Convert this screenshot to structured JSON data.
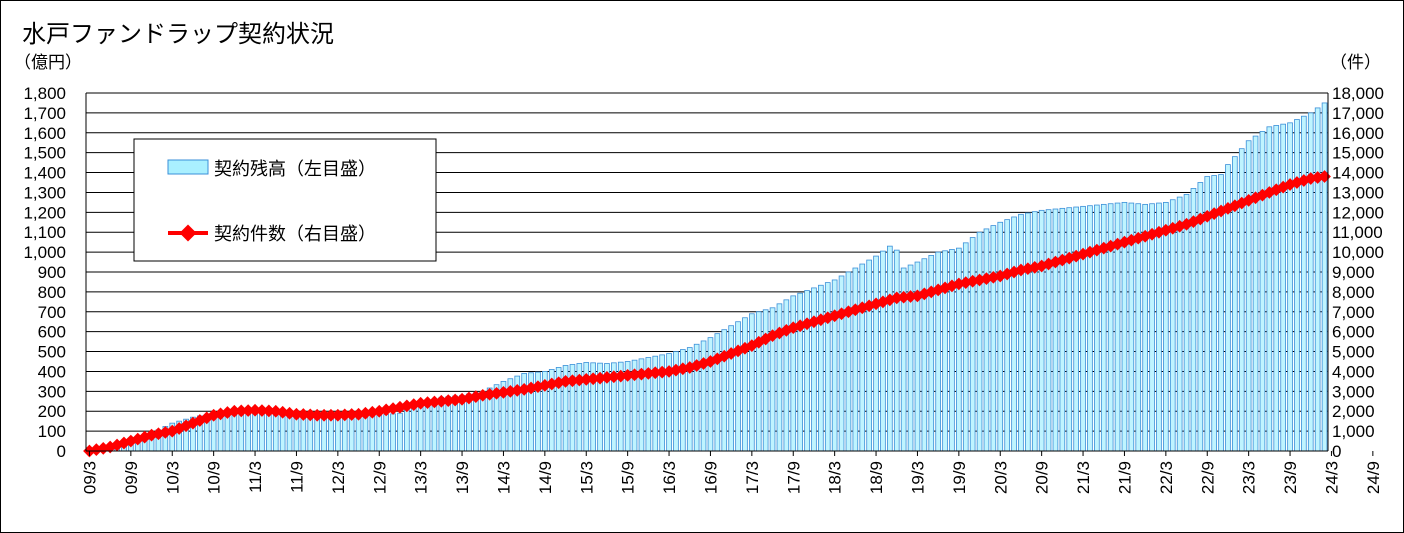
{
  "chart_data": {
    "type": "bar+line",
    "title": "水戸ファンドラップ契約状況",
    "yunit_left": "（億円）",
    "yunit_right": "（件）",
    "y_left_range": [
      0,
      1800
    ],
    "y_left_ticks": [
      "0",
      "100",
      "200",
      "300",
      "400",
      "500",
      "600",
      "700",
      "800",
      "900",
      "1,000",
      "1,100",
      "1,200",
      "1,300",
      "1,400",
      "1,500",
      "1,600",
      "1,700",
      "1,800"
    ],
    "y_right_range": [
      0,
      18000
    ],
    "y_right_ticks": [
      "0",
      "1,000",
      "2,000",
      "3,000",
      "4,000",
      "5,000",
      "6,000",
      "7,000",
      "8,000",
      "9,000",
      "10,000",
      "11,000",
      "12,000",
      "13,000",
      "14,000",
      "15,000",
      "16,000",
      "17,000",
      "18,000"
    ],
    "x_labels": [
      "09/3",
      "09/9",
      "10/3",
      "10/9",
      "11/3",
      "11/9",
      "12/3",
      "12/9",
      "13/3",
      "13/9",
      "14/3",
      "14/9",
      "15/3",
      "15/9",
      "16/3",
      "16/9",
      "17/3",
      "17/9",
      "18/3",
      "18/9",
      "19/3",
      "19/9",
      "20/3",
      "20/9",
      "21/3",
      "21/9",
      "22/3",
      "22/9",
      "23/3",
      "23/9",
      "24/3",
      "24/9"
    ],
    "grid": "horizontal",
    "legend_position": "top-left",
    "series": [
      {
        "name": "契約残高（左目盛）",
        "kind": "bar",
        "axis": "left",
        "color": "#6fb4e8",
        "keypoints": [
          [
            0,
            2
          ],
          [
            3,
            15
          ],
          [
            6,
            30
          ],
          [
            9,
            90
          ],
          [
            12,
            140
          ],
          [
            15,
            170
          ],
          [
            18,
            190
          ],
          [
            21,
            200
          ],
          [
            24,
            190
          ],
          [
            27,
            185
          ],
          [
            30,
            170
          ],
          [
            33,
            160
          ],
          [
            36,
            165
          ],
          [
            39,
            170
          ],
          [
            42,
            180
          ],
          [
            45,
            190
          ],
          [
            48,
            240
          ],
          [
            51,
            270
          ],
          [
            54,
            280
          ],
          [
            57,
            300
          ],
          [
            60,
            350
          ],
          [
            63,
            390
          ],
          [
            66,
            400
          ],
          [
            69,
            430
          ],
          [
            72,
            445
          ],
          [
            75,
            440
          ],
          [
            78,
            450
          ],
          [
            81,
            470
          ],
          [
            84,
            490
          ],
          [
            87,
            520
          ],
          [
            90,
            570
          ],
          [
            93,
            630
          ],
          [
            96,
            690
          ],
          [
            99,
            720
          ],
          [
            102,
            780
          ],
          [
            105,
            820
          ],
          [
            108,
            860
          ],
          [
            111,
            920
          ],
          [
            114,
            980
          ],
          [
            116,
            1030
          ],
          [
            117,
            1010
          ],
          [
            118,
            920
          ],
          [
            120,
            950
          ],
          [
            123,
            1000
          ],
          [
            126,
            1020
          ],
          [
            129,
            1100
          ],
          [
            132,
            1150
          ],
          [
            135,
            1190
          ],
          [
            138,
            1210
          ],
          [
            141,
            1220
          ],
          [
            144,
            1230
          ],
          [
            147,
            1240
          ],
          [
            150,
            1250
          ],
          [
            153,
            1240
          ],
          [
            156,
            1250
          ],
          [
            159,
            1290
          ],
          [
            162,
            1380
          ],
          [
            164,
            1390
          ],
          [
            165,
            1440
          ],
          [
            168,
            1560
          ],
          [
            171,
            1630
          ],
          [
            174,
            1650
          ],
          [
            177,
            1700
          ],
          [
            179,
            1750
          ]
        ]
      },
      {
        "name": "契約件数（右目盛）",
        "kind": "line",
        "axis": "right",
        "color": "#ff0000",
        "keypoints": [
          [
            0,
            0
          ],
          [
            3,
            200
          ],
          [
            6,
            500
          ],
          [
            9,
            800
          ],
          [
            12,
            1000
          ],
          [
            15,
            1400
          ],
          [
            18,
            1800
          ],
          [
            21,
            2000
          ],
          [
            24,
            2050
          ],
          [
            27,
            2000
          ],
          [
            30,
            1850
          ],
          [
            33,
            1800
          ],
          [
            36,
            1800
          ],
          [
            39,
            1850
          ],
          [
            42,
            2000
          ],
          [
            45,
            2200
          ],
          [
            48,
            2400
          ],
          [
            51,
            2500
          ],
          [
            54,
            2600
          ],
          [
            57,
            2800
          ],
          [
            60,
            2950
          ],
          [
            63,
            3100
          ],
          [
            66,
            3300
          ],
          [
            69,
            3500
          ],
          [
            72,
            3600
          ],
          [
            75,
            3700
          ],
          [
            78,
            3800
          ],
          [
            81,
            3900
          ],
          [
            84,
            4000
          ],
          [
            87,
            4200
          ],
          [
            90,
            4500
          ],
          [
            93,
            4900
          ],
          [
            96,
            5300
          ],
          [
            99,
            5800
          ],
          [
            102,
            6200
          ],
          [
            105,
            6500
          ],
          [
            108,
            6800
          ],
          [
            111,
            7100
          ],
          [
            114,
            7400
          ],
          [
            117,
            7700
          ],
          [
            120,
            7800
          ],
          [
            123,
            8100
          ],
          [
            126,
            8400
          ],
          [
            129,
            8600
          ],
          [
            132,
            8800
          ],
          [
            135,
            9100
          ],
          [
            138,
            9300
          ],
          [
            141,
            9600
          ],
          [
            144,
            9900
          ],
          [
            147,
            10200
          ],
          [
            150,
            10500
          ],
          [
            153,
            10800
          ],
          [
            156,
            11100
          ],
          [
            159,
            11400
          ],
          [
            162,
            11800
          ],
          [
            165,
            12200
          ],
          [
            168,
            12600
          ],
          [
            171,
            13000
          ],
          [
            174,
            13400
          ],
          [
            177,
            13700
          ],
          [
            179,
            13800
          ]
        ]
      }
    ],
    "n_points": 180
  }
}
